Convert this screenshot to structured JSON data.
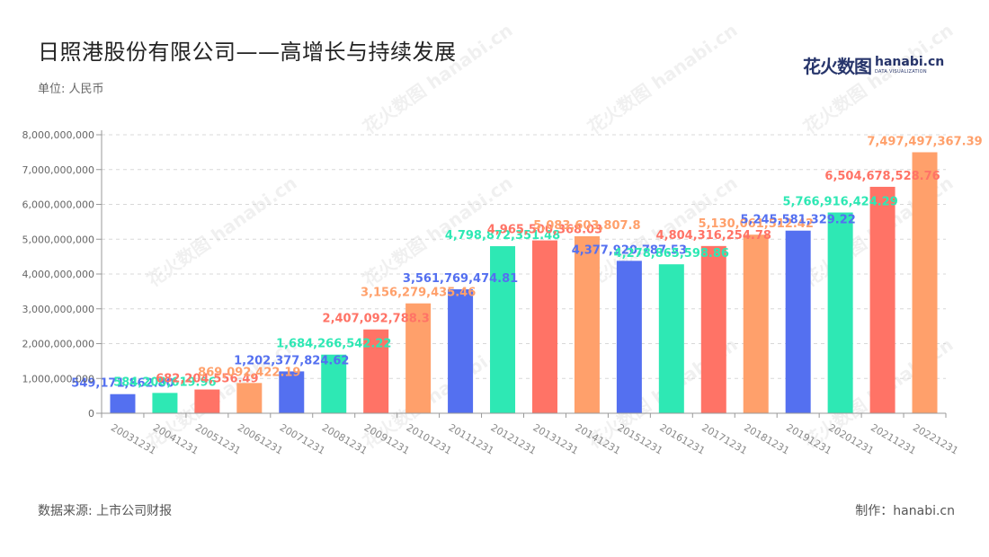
{
  "header": {
    "title": "日照港股份有限公司——高增长与持续发展",
    "unit": "单位: 人民币"
  },
  "logo": {
    "cn": "花火数图",
    "en": "hanabi.cn",
    "sub": "DATA VISUALIZATION",
    "watermark": "花火数图 hanabi.cn"
  },
  "footer": {
    "source": "数据来源: 上市公司财报",
    "credit": "制作：hanabi.cn"
  },
  "chart_data": {
    "type": "bar",
    "categories": [
      "20031231",
      "20041231",
      "20051231",
      "20061231",
      "20071231",
      "20081231",
      "20091231",
      "20101231",
      "20111231",
      "20121231",
      "20131231",
      "20141231",
      "20151231",
      "20161231",
      "20171231",
      "20181231",
      "20191231",
      "20201231",
      "20211231",
      "20221231"
    ],
    "values": [
      549171862.8,
      584200619.96,
      682204556.49,
      869092422.19,
      1202377824.62,
      1684266542.22,
      2407092788.3,
      3156279435.46,
      3561769474.81,
      4798872351.48,
      4965500368.03,
      5083603807.8,
      4377920787.53,
      4278865598.86,
      4804316254.78,
      5130061512.42,
      5245581329.22,
      5766916424.29,
      6504678528.76,
      7497497367.39
    ],
    "labels": [
      "549,171,862.80",
      "584,200,619.96",
      "682,204,556.49",
      "869,092,422.19",
      "1,202,377,824.62",
      "1,684,266,542.22",
      "2,407,092,788.3",
      "3,156,279,435.46",
      "3,561,769,474.81",
      "4,798,872,351.48",
      "4,965,500,368.03",
      "5,083,603,807.8",
      "4,377,920,787.53",
      "4,278,865,598.86",
      "4,804,316,254.78",
      "5,130,061,512.42",
      "5,245,581,329.22",
      "5,766,916,424.29",
      "6,504,678,528.76",
      "7,497,497,367.39"
    ],
    "colors": [
      "#5470f0",
      "#2ee8b4",
      "#ff7366",
      "#ffa06b"
    ],
    "ylim": [
      0,
      8000000000
    ],
    "yticks": [
      0,
      1000000000,
      2000000000,
      3000000000,
      4000000000,
      5000000000,
      6000000000,
      7000000000,
      8000000000
    ],
    "ytick_labels": [
      "0",
      "1,000,000,000",
      "2,000,000,000",
      "3,000,000,000",
      "4,000,000,000",
      "5,000,000,000",
      "6,000,000,000",
      "7,000,000,000",
      "8,000,000,000"
    ],
    "grid": true,
    "legend": "none"
  }
}
